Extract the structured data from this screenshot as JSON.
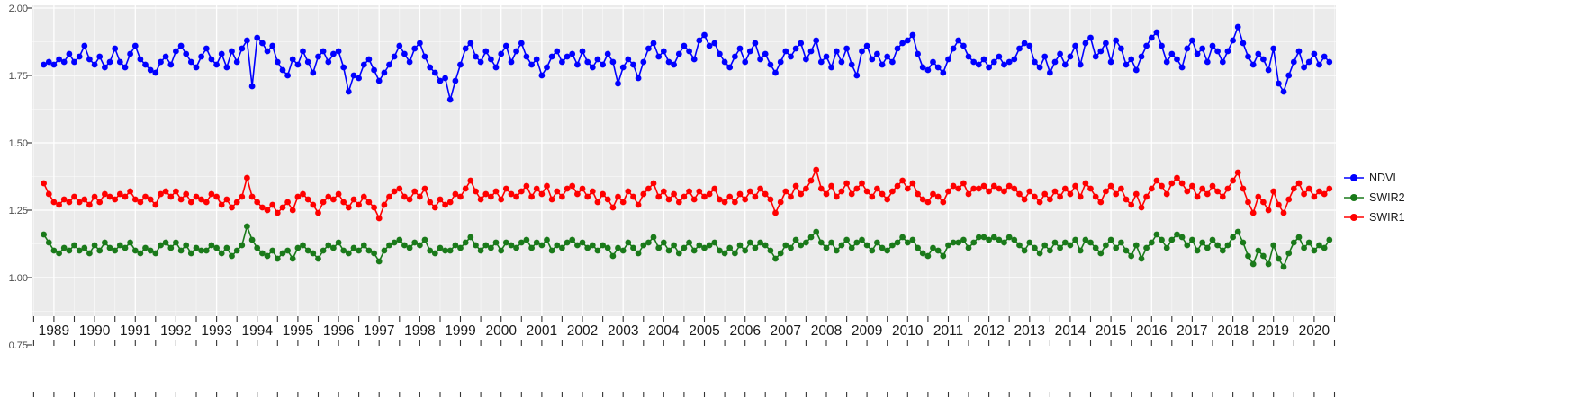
{
  "legend": {
    "items": [
      {
        "label": "NDVI",
        "color": "#0000ff"
      },
      {
        "label": "SWIR2",
        "color": "#1a7a1a"
      },
      {
        "label": "SWIR1",
        "color": "#ff0000"
      }
    ]
  },
  "chart_data": {
    "type": "line",
    "title": "",
    "xlabel": "",
    "ylabel": "",
    "panel_bg": "#ebebeb",
    "grid_color": "#ffffff",
    "tick_color": "#333333",
    "x_label_color": "#1a1a1a",
    "y_label_color": "#4d4d4d",
    "ylim": [
      0.75,
      2.0
    ],
    "x_start": 1988.75,
    "x_step": 0.125,
    "x_axis": {
      "ticks": [
        1989,
        1990,
        1991,
        1992,
        1993,
        1994,
        1995,
        1996,
        1997,
        1998,
        1999,
        2000,
        2001,
        2002,
        2003,
        2004,
        2005,
        2006,
        2007,
        2008,
        2009,
        2010,
        2011,
        2012,
        2013,
        2014,
        2015,
        2016,
        2017,
        2018,
        2019,
        2020
      ],
      "minor_interval": 0.5
    },
    "y_axis": {
      "ticks": [
        "2.00",
        "1.75",
        "1.50",
        "1.25",
        "1.00",
        "0.75"
      ],
      "values": [
        2.0,
        1.75,
        1.5,
        1.25,
        1.0,
        0.75
      ]
    },
    "series": [
      {
        "name": "NDVI",
        "color": "#0000ff",
        "values": [
          1.79,
          1.8,
          1.79,
          1.81,
          1.8,
          1.83,
          1.8,
          1.82,
          1.86,
          1.81,
          1.79,
          1.82,
          1.78,
          1.8,
          1.85,
          1.8,
          1.78,
          1.83,
          1.86,
          1.81,
          1.79,
          1.77,
          1.76,
          1.8,
          1.82,
          1.79,
          1.84,
          1.86,
          1.83,
          1.8,
          1.78,
          1.82,
          1.85,
          1.81,
          1.79,
          1.83,
          1.78,
          1.84,
          1.8,
          1.85,
          1.88,
          1.71,
          1.89,
          1.87,
          1.84,
          1.86,
          1.8,
          1.77,
          1.75,
          1.81,
          1.79,
          1.84,
          1.8,
          1.76,
          1.82,
          1.84,
          1.8,
          1.83,
          1.84,
          1.78,
          1.69,
          1.75,
          1.74,
          1.79,
          1.81,
          1.77,
          1.73,
          1.76,
          1.79,
          1.82,
          1.86,
          1.83,
          1.8,
          1.85,
          1.87,
          1.82,
          1.78,
          1.76,
          1.73,
          1.74,
          1.66,
          1.73,
          1.79,
          1.85,
          1.87,
          1.82,
          1.8,
          1.84,
          1.81,
          1.78,
          1.83,
          1.86,
          1.8,
          1.84,
          1.87,
          1.82,
          1.79,
          1.81,
          1.75,
          1.78,
          1.82,
          1.84,
          1.8,
          1.82,
          1.83,
          1.79,
          1.84,
          1.8,
          1.78,
          1.81,
          1.79,
          1.83,
          1.8,
          1.72,
          1.78,
          1.81,
          1.79,
          1.74,
          1.8,
          1.85,
          1.87,
          1.82,
          1.84,
          1.8,
          1.79,
          1.83,
          1.86,
          1.84,
          1.81,
          1.88,
          1.9,
          1.86,
          1.87,
          1.83,
          1.8,
          1.78,
          1.82,
          1.85,
          1.8,
          1.84,
          1.87,
          1.81,
          1.83,
          1.79,
          1.76,
          1.8,
          1.84,
          1.82,
          1.85,
          1.87,
          1.81,
          1.84,
          1.88,
          1.8,
          1.82,
          1.78,
          1.84,
          1.8,
          1.85,
          1.79,
          1.75,
          1.84,
          1.86,
          1.81,
          1.83,
          1.79,
          1.82,
          1.8,
          1.85,
          1.87,
          1.88,
          1.9,
          1.83,
          1.78,
          1.77,
          1.8,
          1.78,
          1.76,
          1.81,
          1.85,
          1.88,
          1.86,
          1.82,
          1.8,
          1.79,
          1.81,
          1.78,
          1.8,
          1.82,
          1.79,
          1.8,
          1.81,
          1.85,
          1.87,
          1.86,
          1.8,
          1.78,
          1.82,
          1.76,
          1.8,
          1.83,
          1.79,
          1.82,
          1.86,
          1.79,
          1.87,
          1.89,
          1.82,
          1.84,
          1.87,
          1.8,
          1.88,
          1.85,
          1.79,
          1.81,
          1.77,
          1.82,
          1.86,
          1.89,
          1.91,
          1.86,
          1.8,
          1.83,
          1.81,
          1.78,
          1.85,
          1.88,
          1.83,
          1.85,
          1.8,
          1.86,
          1.84,
          1.8,
          1.84,
          1.88,
          1.93,
          1.87,
          1.82,
          1.79,
          1.83,
          1.81,
          1.77,
          1.85,
          1.72,
          1.69,
          1.75,
          1.8,
          1.84,
          1.78,
          1.8,
          1.83,
          1.79,
          1.82,
          1.8
        ]
      },
      {
        "name": "SWIR2",
        "color": "#1a7a1a",
        "values": [
          1.16,
          1.13,
          1.1,
          1.09,
          1.11,
          1.1,
          1.12,
          1.1,
          1.11,
          1.09,
          1.12,
          1.1,
          1.13,
          1.11,
          1.1,
          1.12,
          1.11,
          1.13,
          1.1,
          1.09,
          1.11,
          1.1,
          1.09,
          1.12,
          1.13,
          1.11,
          1.13,
          1.1,
          1.12,
          1.09,
          1.11,
          1.1,
          1.1,
          1.12,
          1.11,
          1.09,
          1.11,
          1.08,
          1.1,
          1.12,
          1.19,
          1.14,
          1.11,
          1.09,
          1.08,
          1.1,
          1.07,
          1.09,
          1.1,
          1.07,
          1.11,
          1.12,
          1.1,
          1.09,
          1.07,
          1.1,
          1.12,
          1.11,
          1.13,
          1.1,
          1.09,
          1.11,
          1.1,
          1.12,
          1.1,
          1.09,
          1.06,
          1.1,
          1.12,
          1.13,
          1.14,
          1.12,
          1.11,
          1.13,
          1.12,
          1.14,
          1.1,
          1.09,
          1.11,
          1.1,
          1.1,
          1.12,
          1.11,
          1.13,
          1.15,
          1.12,
          1.1,
          1.12,
          1.11,
          1.13,
          1.1,
          1.13,
          1.12,
          1.11,
          1.13,
          1.14,
          1.11,
          1.13,
          1.12,
          1.14,
          1.1,
          1.12,
          1.11,
          1.13,
          1.14,
          1.12,
          1.13,
          1.11,
          1.12,
          1.1,
          1.12,
          1.11,
          1.08,
          1.11,
          1.1,
          1.13,
          1.11,
          1.09,
          1.12,
          1.13,
          1.15,
          1.11,
          1.13,
          1.1,
          1.12,
          1.09,
          1.11,
          1.13,
          1.1,
          1.12,
          1.11,
          1.12,
          1.13,
          1.1,
          1.09,
          1.11,
          1.09,
          1.12,
          1.1,
          1.13,
          1.11,
          1.13,
          1.12,
          1.1,
          1.07,
          1.09,
          1.12,
          1.11,
          1.14,
          1.12,
          1.13,
          1.15,
          1.17,
          1.13,
          1.11,
          1.13,
          1.1,
          1.12,
          1.14,
          1.11,
          1.13,
          1.14,
          1.12,
          1.1,
          1.13,
          1.11,
          1.1,
          1.12,
          1.13,
          1.15,
          1.13,
          1.14,
          1.11,
          1.09,
          1.08,
          1.11,
          1.1,
          1.08,
          1.12,
          1.13,
          1.13,
          1.14,
          1.11,
          1.13,
          1.15,
          1.15,
          1.14,
          1.15,
          1.14,
          1.13,
          1.15,
          1.14,
          1.12,
          1.1,
          1.13,
          1.11,
          1.09,
          1.12,
          1.1,
          1.13,
          1.11,
          1.13,
          1.12,
          1.14,
          1.1,
          1.14,
          1.13,
          1.11,
          1.09,
          1.12,
          1.14,
          1.11,
          1.13,
          1.1,
          1.08,
          1.12,
          1.07,
          1.11,
          1.13,
          1.16,
          1.14,
          1.11,
          1.14,
          1.16,
          1.15,
          1.12,
          1.14,
          1.1,
          1.13,
          1.11,
          1.14,
          1.12,
          1.1,
          1.12,
          1.15,
          1.17,
          1.13,
          1.08,
          1.05,
          1.1,
          1.08,
          1.05,
          1.12,
          1.07,
          1.04,
          1.09,
          1.13,
          1.15,
          1.11,
          1.13,
          1.1,
          1.12,
          1.11,
          1.14
        ]
      },
      {
        "name": "SWIR1",
        "color": "#ff0000",
        "values": [
          1.35,
          1.31,
          1.28,
          1.27,
          1.29,
          1.28,
          1.3,
          1.28,
          1.29,
          1.27,
          1.3,
          1.28,
          1.31,
          1.3,
          1.29,
          1.31,
          1.3,
          1.32,
          1.29,
          1.28,
          1.3,
          1.29,
          1.27,
          1.31,
          1.32,
          1.3,
          1.32,
          1.29,
          1.31,
          1.28,
          1.3,
          1.29,
          1.28,
          1.31,
          1.3,
          1.27,
          1.29,
          1.26,
          1.28,
          1.3,
          1.37,
          1.3,
          1.28,
          1.26,
          1.25,
          1.27,
          1.24,
          1.26,
          1.28,
          1.25,
          1.3,
          1.31,
          1.29,
          1.27,
          1.24,
          1.28,
          1.3,
          1.29,
          1.31,
          1.28,
          1.26,
          1.29,
          1.27,
          1.3,
          1.28,
          1.26,
          1.22,
          1.27,
          1.3,
          1.32,
          1.33,
          1.3,
          1.29,
          1.32,
          1.3,
          1.33,
          1.28,
          1.26,
          1.29,
          1.27,
          1.28,
          1.31,
          1.3,
          1.33,
          1.36,
          1.32,
          1.29,
          1.31,
          1.3,
          1.32,
          1.29,
          1.33,
          1.31,
          1.3,
          1.32,
          1.34,
          1.3,
          1.33,
          1.31,
          1.34,
          1.29,
          1.32,
          1.3,
          1.33,
          1.34,
          1.31,
          1.33,
          1.3,
          1.32,
          1.28,
          1.31,
          1.29,
          1.26,
          1.3,
          1.28,
          1.32,
          1.3,
          1.27,
          1.31,
          1.33,
          1.35,
          1.3,
          1.32,
          1.29,
          1.31,
          1.28,
          1.3,
          1.32,
          1.29,
          1.32,
          1.3,
          1.31,
          1.33,
          1.29,
          1.28,
          1.3,
          1.28,
          1.31,
          1.29,
          1.32,
          1.3,
          1.33,
          1.31,
          1.29,
          1.24,
          1.28,
          1.32,
          1.3,
          1.34,
          1.31,
          1.33,
          1.36,
          1.4,
          1.33,
          1.31,
          1.34,
          1.3,
          1.32,
          1.35,
          1.31,
          1.33,
          1.35,
          1.32,
          1.3,
          1.33,
          1.31,
          1.29,
          1.32,
          1.34,
          1.36,
          1.33,
          1.35,
          1.31,
          1.29,
          1.28,
          1.31,
          1.3,
          1.28,
          1.32,
          1.34,
          1.33,
          1.35,
          1.31,
          1.33,
          1.33,
          1.34,
          1.32,
          1.34,
          1.33,
          1.32,
          1.34,
          1.33,
          1.31,
          1.29,
          1.32,
          1.3,
          1.28,
          1.31,
          1.29,
          1.32,
          1.3,
          1.33,
          1.31,
          1.34,
          1.3,
          1.35,
          1.33,
          1.3,
          1.28,
          1.32,
          1.34,
          1.31,
          1.33,
          1.29,
          1.27,
          1.31,
          1.26,
          1.3,
          1.33,
          1.36,
          1.34,
          1.31,
          1.35,
          1.37,
          1.35,
          1.32,
          1.34,
          1.3,
          1.33,
          1.31,
          1.34,
          1.32,
          1.3,
          1.33,
          1.36,
          1.39,
          1.33,
          1.28,
          1.24,
          1.3,
          1.28,
          1.25,
          1.32,
          1.27,
          1.24,
          1.29,
          1.33,
          1.35,
          1.31,
          1.33,
          1.3,
          1.32,
          1.31,
          1.33
        ]
      }
    ]
  }
}
